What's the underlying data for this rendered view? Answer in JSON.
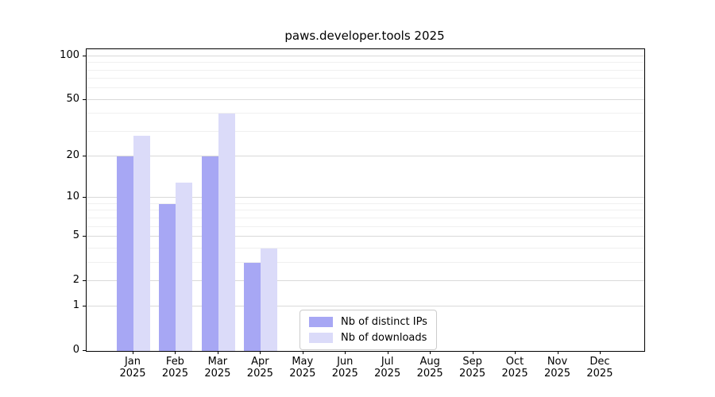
{
  "chart_data": {
    "type": "bar",
    "title": "paws.developer.tools 2025",
    "categories": [
      "Jan 2025",
      "Feb 2025",
      "Mar 2025",
      "Apr 2025",
      "May 2025",
      "Jun 2025",
      "Jul 2025",
      "Aug 2025",
      "Sep 2025",
      "Oct 2025",
      "Nov 2025",
      "Dec 2025"
    ],
    "x_tick_months": [
      "Jan",
      "Feb",
      "Mar",
      "Apr",
      "May",
      "Jun",
      "Jul",
      "Aug",
      "Sep",
      "Oct",
      "Nov",
      "Dec"
    ],
    "x_tick_year": "2025",
    "series": [
      {
        "name": "Nb of distinct IPs",
        "color": "#a7a7f4",
        "values": [
          20,
          9,
          20,
          3,
          0,
          0,
          0,
          0,
          0,
          0,
          0,
          0
        ]
      },
      {
        "name": "Nb of downloads",
        "color": "#dbdbf9",
        "values": [
          28,
          13,
          40,
          4,
          0,
          0,
          0,
          0,
          0,
          0,
          0,
          0
        ]
      }
    ],
    "y_scale": "log1p",
    "y_ticks": [
      100,
      50,
      20,
      10,
      5,
      2,
      1,
      0
    ],
    "y_minor_gridlines": [
      3,
      4,
      6,
      7,
      8,
      9,
      30,
      40,
      60,
      70,
      80,
      90
    ],
    "ylim": [
      0,
      113
    ],
    "grid": "horizontal",
    "legend_position": "inside-bottom-center",
    "colors": {
      "axis": "#000000",
      "grid_major": "#d9d9d9",
      "grid_minor": "#f0f0f0",
      "background": "#ffffff"
    }
  }
}
